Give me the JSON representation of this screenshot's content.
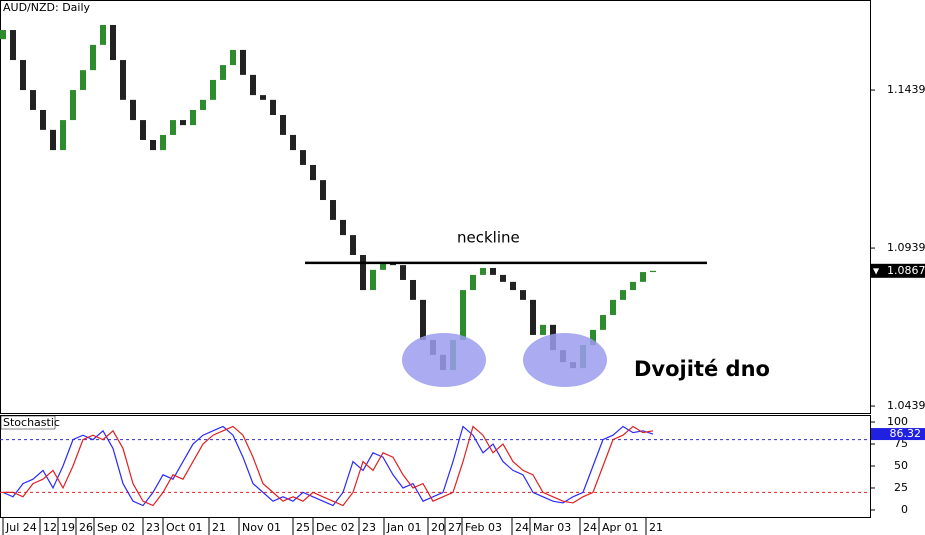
{
  "chart_data": [
    {
      "type": "candlestick",
      "title": "AUD/NZD: Daily",
      "open": [
        1.16,
        1.1629,
        1.1534,
        1.1439,
        1.1376,
        1.1313,
        1.1249,
        1.1344,
        1.1439,
        1.1502,
        1.1582,
        1.1645,
        1.1534,
        1.1408,
        1.1344,
        1.1281,
        1.1249,
        1.1297,
        1.1344,
        1.1328,
        1.1376,
        1.1408,
        1.1471,
        1.1518,
        1.1566,
        1.1487,
        1.1423,
        1.1408,
        1.136,
        1.1297,
        1.1249,
        1.1202,
        1.1154,
        1.1091,
        1.1028,
        1.098,
        1.0917,
        1.0806,
        1.087,
        1.0895,
        1.0885,
        1.0838,
        1.0775,
        1.0648,
        1.0601,
        1.0553,
        1.0648,
        1.0806,
        1.0854,
        1.0876,
        1.0854,
        1.0832,
        1.0806,
        1.0775,
        1.0664,
        1.0696,
        1.0616,
        1.0578,
        1.0559,
        1.0632,
        1.068,
        1.0727,
        1.0775,
        1.0806,
        1.0832,
        1.0863
      ],
      "close": [
        1.1629,
        1.1534,
        1.1439,
        1.1376,
        1.1313,
        1.1249,
        1.1344,
        1.1439,
        1.1502,
        1.1582,
        1.1645,
        1.1534,
        1.1408,
        1.1344,
        1.1281,
        1.1249,
        1.1297,
        1.1344,
        1.1328,
        1.1376,
        1.1408,
        1.1471,
        1.1518,
        1.1566,
        1.1487,
        1.1423,
        1.1408,
        1.136,
        1.1297,
        1.1249,
        1.1202,
        1.1154,
        1.1091,
        1.1028,
        1.098,
        1.0917,
        1.0806,
        1.087,
        1.0895,
        1.0885,
        1.0838,
        1.0775,
        1.0648,
        1.0601,
        1.0553,
        1.0648,
        1.0806,
        1.0854,
        1.0876,
        1.0854,
        1.0832,
        1.0806,
        1.0775,
        1.0664,
        1.0696,
        1.0616,
        1.0578,
        1.0559,
        1.0632,
        1.068,
        1.0727,
        1.0775,
        1.0806,
        1.0832,
        1.0863,
        1.0867
      ],
      "up_color": "#2e8b2e",
      "down_color": "#222222",
      "xlim": [
        -0.3,
        86.7
      ],
      "ylim": [
        1.0417,
        1.1724
      ],
      "yticks": [
        1.1439,
        1.0939,
        1.0439
      ],
      "xticks": [
        {
          "value": 0,
          "label": "Jul 24"
        },
        {
          "value": 3.7,
          "label": "12"
        },
        {
          "value": 5.5,
          "label": "19"
        },
        {
          "value": 7.3,
          "label": "26"
        },
        {
          "value": 9.1,
          "label": "Sep 02"
        },
        {
          "value": 14,
          "label": "23"
        },
        {
          "value": 16,
          "label": "Oct 01"
        },
        {
          "value": 20.6,
          "label": "21"
        },
        {
          "value": 23.6,
          "label": "Nov 01"
        },
        {
          "value": 29,
          "label": "25"
        },
        {
          "value": 31,
          "label": "Dec 02"
        },
        {
          "value": 35.6,
          "label": "23"
        },
        {
          "value": 38.1,
          "label": "Jan 01"
        },
        {
          "value": 42.5,
          "label": "20"
        },
        {
          "value": 44.2,
          "label": "27"
        },
        {
          "value": 45.9,
          "label": "Feb 03"
        },
        {
          "value": 50.9,
          "label": "24"
        },
        {
          "value": 52.7,
          "label": "Mar 03"
        },
        {
          "value": 57.7,
          "label": "24"
        },
        {
          "value": 59.6,
          "label": "Apr 01"
        },
        {
          "value": 64.3,
          "label": "21"
        }
      ],
      "neckline": {
        "text": "neckline",
        "y": 1.0892,
        "x": [
          30.2,
          70.4
        ]
      },
      "pattern_label": "Dvojité dno"
    },
    {
      "type": "line",
      "title": "Stochastic",
      "ylim": [
        -8,
        108
      ],
      "yticks": [
        100,
        75,
        50,
        25,
        0
      ],
      "levels": [
        {
          "value": 80,
          "color": "#3030c0"
        },
        {
          "value": 20,
          "color": "#e02020"
        }
      ],
      "series": [
        {
          "color": "#2a2aff",
          "values": [
            20,
            15,
            30,
            35,
            45,
            25,
            50,
            80,
            85,
            80,
            90,
            70,
            30,
            10,
            5,
            20,
            40,
            35,
            55,
            75,
            85,
            90,
            95,
            85,
            60,
            30,
            20,
            10,
            15,
            10,
            20,
            15,
            10,
            5,
            20,
            55,
            45,
            65,
            60,
            40,
            25,
            30,
            10,
            15,
            20,
            55,
            95,
            85,
            65,
            75,
            55,
            45,
            40,
            20,
            15,
            10,
            8,
            15,
            20,
            50,
            80,
            85,
            95,
            88,
            90,
            86.32
          ]
        },
        {
          "color": "#e02020",
          "values": [
            20,
            20,
            15,
            30,
            35,
            45,
            25,
            50,
            80,
            85,
            80,
            90,
            70,
            30,
            10,
            5,
            20,
            40,
            35,
            55,
            75,
            85,
            90,
            95,
            85,
            60,
            30,
            20,
            10,
            15,
            10,
            20,
            15,
            10,
            5,
            20,
            55,
            45,
            65,
            60,
            40,
            25,
            30,
            10,
            15,
            20,
            55,
            95,
            85,
            65,
            75,
            55,
            45,
            40,
            20,
            15,
            10,
            8,
            15,
            20,
            50,
            80,
            85,
            95,
            88,
            90
          ]
        }
      ]
    }
  ]
}
